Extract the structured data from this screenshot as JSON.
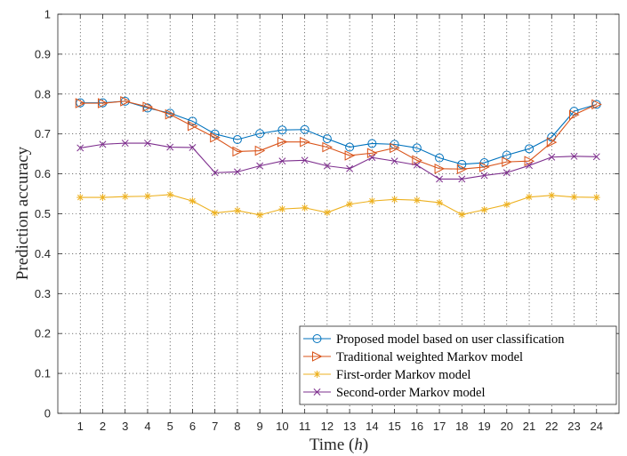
{
  "chart_data": {
    "type": "line",
    "title": "",
    "xlabel_prefix": "Time (",
    "xlabel_var": "h",
    "xlabel_suffix": ")",
    "ylabel": "Prediction accuracy",
    "xlim": [
      0,
      25
    ],
    "ylim": [
      0,
      1
    ],
    "x_ticks": [
      1,
      2,
      3,
      4,
      5,
      6,
      7,
      8,
      9,
      10,
      11,
      12,
      13,
      14,
      15,
      16,
      17,
      18,
      19,
      20,
      21,
      22,
      23,
      24
    ],
    "y_ticks": [
      0,
      0.1,
      0.2,
      0.3,
      0.4,
      0.5,
      0.6,
      0.7,
      0.8,
      0.9,
      1
    ],
    "y_tick_labels": [
      "0",
      "0.1",
      "0.2",
      "0.3",
      "0.4",
      "0.5",
      "0.6",
      "0.7",
      "0.8",
      "0.9",
      "1"
    ],
    "grid": true,
    "legend_position": "bottom-right",
    "series": [
      {
        "name": "Proposed model based on user classification",
        "color": "#0072BD",
        "marker": "circle",
        "values": [
          0.778,
          0.778,
          0.782,
          0.765,
          0.752,
          0.732,
          0.7,
          0.686,
          0.701,
          0.71,
          0.711,
          0.688,
          0.667,
          0.676,
          0.674,
          0.665,
          0.64,
          0.624,
          0.628,
          0.647,
          0.663,
          0.692,
          0.757,
          0.774
        ]
      },
      {
        "name": "Traditional weighted Markov model",
        "color": "#D95319",
        "marker": "triangle-right",
        "values": [
          0.777,
          0.777,
          0.782,
          0.768,
          0.749,
          0.72,
          0.691,
          0.656,
          0.658,
          0.68,
          0.68,
          0.667,
          0.646,
          0.652,
          0.665,
          0.634,
          0.613,
          0.612,
          0.617,
          0.63,
          0.632,
          0.679,
          0.748,
          0.774
        ]
      },
      {
        "name": "First-order Markov model",
        "color": "#EDB120",
        "marker": "asterisk",
        "values": [
          0.541,
          0.541,
          0.543,
          0.544,
          0.548,
          0.532,
          0.502,
          0.508,
          0.497,
          0.512,
          0.515,
          0.503,
          0.524,
          0.532,
          0.536,
          0.534,
          0.528,
          0.498,
          0.51,
          0.523,
          0.542,
          0.546,
          0.542,
          0.541
        ]
      },
      {
        "name": "Second-order Markov model",
        "color": "#7E2F8E",
        "marker": "x",
        "values": [
          0.665,
          0.674,
          0.677,
          0.677,
          0.667,
          0.666,
          0.603,
          0.605,
          0.62,
          0.632,
          0.634,
          0.62,
          0.613,
          0.641,
          0.632,
          0.622,
          0.587,
          0.587,
          0.596,
          0.603,
          0.621,
          0.642,
          0.644,
          0.643
        ]
      }
    ]
  }
}
